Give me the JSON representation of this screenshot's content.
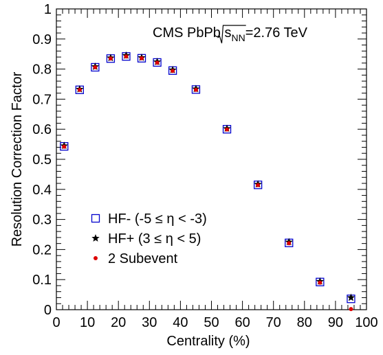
{
  "chart_data": {
    "type": "scatter",
    "xlabel": "Centrality (%)",
    "ylabel": "Resolution Correction Factor",
    "xlim": [
      0,
      100
    ],
    "ylim": [
      0,
      1
    ],
    "x_ticks": [
      "0",
      "10",
      "20",
      "30",
      "40",
      "50",
      "60",
      "70",
      "80",
      "90",
      "100"
    ],
    "y_ticks": [
      "0",
      "0.1",
      "0.2",
      "0.3",
      "0.4",
      "0.5",
      "0.6",
      "0.7",
      "0.8",
      "0.9",
      "1"
    ],
    "grid": false,
    "legend_position": "bottom-left",
    "annotation": {
      "prefix": "CMS PbPb ",
      "sqrt_base": "s",
      "sqrt_sub": "NN",
      "suffix": "=2.76 TeV"
    },
    "x": [
      2.5,
      7.5,
      12.5,
      17.5,
      22.5,
      27.5,
      32.5,
      37.5,
      45,
      55,
      65,
      75,
      85,
      95
    ],
    "series": [
      {
        "name": "HF- (-5 ≤ η < -3)",
        "marker": "open-square",
        "color": "#0000cc",
        "values": [
          0.543,
          0.731,
          0.806,
          0.835,
          0.842,
          0.836,
          0.822,
          0.795,
          0.732,
          0.6,
          0.415,
          0.222,
          0.092,
          0.036
        ]
      },
      {
        "name": "HF+ (3 ≤ η < 5)",
        "marker": "star",
        "color": "#000000",
        "values": [
          0.545,
          0.733,
          0.808,
          0.837,
          0.845,
          0.838,
          0.824,
          0.797,
          0.734,
          0.602,
          0.417,
          0.225,
          0.094,
          0.04
        ]
      },
      {
        "name": "2 Subevent",
        "marker": "filled-circle",
        "color": "#dd0000",
        "values": [
          0.542,
          0.731,
          0.806,
          0.835,
          0.842,
          0.836,
          0.821,
          0.794,
          0.731,
          0.599,
          0.414,
          0.221,
          0.09,
          0.002
        ]
      }
    ]
  }
}
